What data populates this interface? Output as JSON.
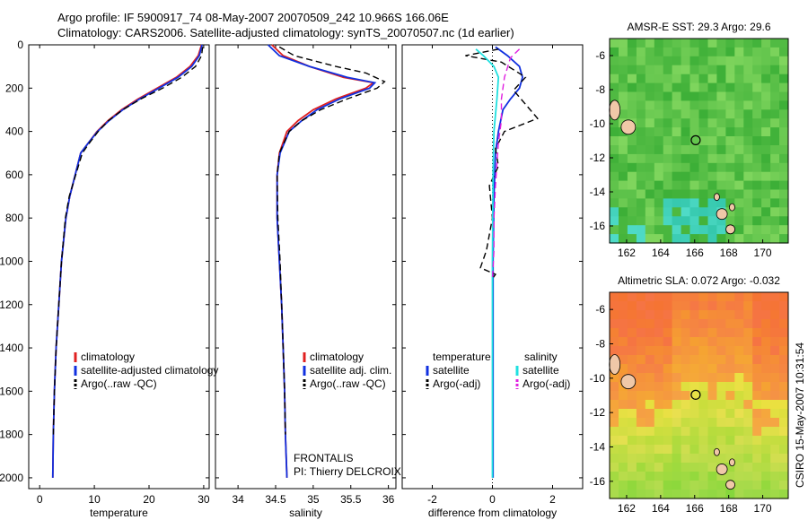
{
  "title_line1": "Argo profile: IF 5900917_74 08-May-2007 20070509_242 10.966S 166.06E",
  "title_line2": "Climatology: CARS2006. Satellite-adjusted climatology: synTS_20070507.nc (1d earlier)",
  "side_stamp": "CSIRO 15-May-2007 10:31:54",
  "frontalis": "FRONTALIS",
  "pi": "PI: Thierry DELCROIX",
  "colors": {
    "red": "#e02020",
    "blue": "#1030e0",
    "cyan": "#20e0e0",
    "magenta": "#e020e0",
    "black": "#000000"
  },
  "chart_data": [
    {
      "type": "line",
      "id": "temperature",
      "xlabel": "temperature",
      "xlim": [
        -2,
        31
      ],
      "ylim": [
        2050,
        0
      ],
      "xticks": [
        0,
        10,
        20,
        30
      ],
      "yticks": [
        0,
        200,
        400,
        600,
        800,
        1000,
        1200,
        1400,
        1600,
        1800,
        2000
      ],
      "legend": [
        "climatology",
        "satellite-adjusted climatology",
        "Argo(..raw -QC)"
      ],
      "series": [
        {
          "name": "climatology",
          "color": "red",
          "x": [
            29.6,
            29.0,
            27.5,
            25.0,
            21.5,
            18.0,
            15.0,
            12.5,
            10.5,
            9.0,
            7.5,
            6.5,
            5.5,
            4.8,
            4.0,
            3.5,
            3.0,
            2.7,
            2.5,
            2.4
          ],
          "y": [
            0,
            50,
            100,
            150,
            200,
            250,
            300,
            350,
            400,
            450,
            500,
            600,
            700,
            800,
            1000,
            1200,
            1400,
            1600,
            1800,
            2000
          ]
        },
        {
          "name": "satellite-adjusted climatology",
          "color": "blue",
          "x": [
            29.7,
            29.2,
            27.8,
            25.3,
            21.8,
            18.3,
            15.2,
            12.7,
            10.6,
            9.0,
            7.5,
            6.5,
            5.5,
            4.8,
            4.0,
            3.5,
            3.0,
            2.7,
            2.5,
            2.4
          ],
          "y": [
            0,
            50,
            100,
            150,
            200,
            250,
            300,
            350,
            400,
            450,
            500,
            600,
            700,
            800,
            1000,
            1200,
            1400,
            1600,
            1800,
            2000
          ]
        },
        {
          "name": "Argo(..raw -QC)",
          "color": "black",
          "dash": true,
          "x": [
            29.8,
            29.6,
            28.5,
            26.0,
            22.5,
            18.5,
            15.2,
            12.6,
            10.7,
            9.2,
            7.8,
            6.6,
            5.4,
            4.7,
            4.0,
            3.5,
            3.0,
            2.7,
            2.5
          ],
          "y": [
            10,
            50,
            100,
            150,
            200,
            250,
            300,
            350,
            400,
            450,
            500,
            600,
            700,
            800,
            1000,
            1200,
            1400,
            1600,
            1800
          ]
        }
      ]
    },
    {
      "type": "line",
      "id": "salinity",
      "xlabel": "salinity",
      "xlim": [
        33.7,
        36.1
      ],
      "ylim": [
        2050,
        0
      ],
      "xticks": [
        34,
        34.5,
        35,
        35.5,
        36
      ],
      "legend": [
        "climatology",
        "satellite adj. clim.",
        "Argo(..raw -QC)"
      ],
      "series": [
        {
          "name": "climatology",
          "color": "red",
          "x": [
            34.45,
            34.6,
            34.95,
            35.4,
            35.8,
            35.7,
            35.3,
            35.0,
            34.8,
            34.65,
            34.55,
            34.52,
            34.52,
            34.55,
            34.58,
            34.6,
            34.62,
            34.63,
            34.65
          ],
          "y": [
            0,
            50,
            100,
            150,
            175,
            200,
            250,
            300,
            350,
            400,
            500,
            600,
            800,
            1000,
            1200,
            1400,
            1600,
            1800,
            2000
          ]
        },
        {
          "name": "satellite adj. clim.",
          "color": "blue",
          "x": [
            34.4,
            34.55,
            34.95,
            35.45,
            35.82,
            35.75,
            35.35,
            35.05,
            34.85,
            34.68,
            34.56,
            34.52,
            34.52,
            34.55,
            34.58,
            34.6,
            34.62,
            34.63,
            34.65
          ],
          "y": [
            0,
            50,
            100,
            150,
            175,
            200,
            250,
            300,
            350,
            400,
            500,
            600,
            800,
            1000,
            1200,
            1400,
            1600,
            1800,
            2000
          ]
        },
        {
          "name": "Argo(..raw -QC)",
          "color": "black",
          "dash": true,
          "x": [
            34.55,
            34.75,
            35.3,
            35.7,
            35.95,
            35.85,
            35.45,
            35.1,
            34.85,
            34.68,
            34.55,
            34.52,
            34.53,
            34.56,
            34.58,
            34.6,
            34.62,
            34.63
          ],
          "y": [
            10,
            50,
            100,
            130,
            170,
            200,
            250,
            300,
            350,
            400,
            500,
            600,
            800,
            1000,
            1200,
            1400,
            1600,
            1800
          ]
        }
      ]
    },
    {
      "type": "line",
      "id": "difference",
      "xlabel": "difference from climatology",
      "xlim": [
        -3,
        3
      ],
      "ylim": [
        2050,
        0
      ],
      "xticks": [
        -2,
        0,
        2
      ],
      "legend_headers": [
        "temperature",
        "salinity"
      ],
      "legend": [
        "satellite",
        "Argo(-adj)",
        "satellite",
        "Argo(-adj)"
      ],
      "series": [
        {
          "name": "temperature satellite",
          "color": "blue",
          "x": [
            0.1,
            0.5,
            0.9,
            1.0,
            0.9,
            0.6,
            0.35,
            0.2,
            0.1,
            0.05,
            0.02,
            0.02,
            0.02
          ],
          "y": [
            10,
            50,
            100,
            150,
            200,
            250,
            300,
            400,
            500,
            700,
            1000,
            1500,
            2000
          ]
        },
        {
          "name": "temperature Argo(-adj)",
          "color": "black",
          "dash": true,
          "x": [
            0.2,
            -0.9,
            0.3,
            1.1,
            0.7,
            1.5,
            0.4,
            0.1,
            0.2,
            -0.1,
            0.0,
            -0.2,
            -0.4,
            0.1,
            0.0
          ],
          "y": [
            20,
            50,
            80,
            150,
            210,
            340,
            400,
            480,
            560,
            650,
            800,
            950,
            1030,
            1060,
            1080
          ]
        },
        {
          "name": "salinity satellite",
          "color": "cyan",
          "x": [
            -0.55,
            -0.3,
            0.05,
            0.2,
            0.15,
            0.05,
            0.02,
            0.0,
            0.0,
            0.0
          ],
          "y": [
            20,
            50,
            100,
            150,
            250,
            400,
            600,
            1000,
            1500,
            2000
          ]
        },
        {
          "name": "salinity Argo(-adj)",
          "color": "magenta",
          "dash": true,
          "x": [
            0.9,
            0.6,
            0.4,
            0.3,
            0.3,
            0.2,
            0.15,
            0.1,
            0.05,
            0.05,
            0.0
          ],
          "y": [
            20,
            60,
            150,
            250,
            350,
            450,
            550,
            650,
            800,
            950,
            1080
          ]
        }
      ]
    },
    {
      "type": "heatmap",
      "id": "sst_map",
      "title": "AMSR-E SST: 29.3 Argo: 29.6",
      "xlim": [
        161,
        171.5
      ],
      "ylim": [
        -17,
        -5
      ],
      "xticks": [
        162,
        164,
        166,
        168,
        170
      ],
      "yticks": [
        -6,
        -8,
        -10,
        -12,
        -14,
        -16
      ],
      "argo_position": [
        166.06,
        -10.966
      ],
      "colormap": "green"
    },
    {
      "type": "heatmap",
      "id": "sla_map",
      "title": "Altimetric SLA: 0.072 Argo: -0.032",
      "xlim": [
        161,
        171.5
      ],
      "ylim": [
        -17,
        -5
      ],
      "xticks": [
        162,
        164,
        166,
        168,
        170
      ],
      "yticks": [
        -6,
        -8,
        -10,
        -12,
        -14,
        -16
      ],
      "argo_position": [
        166.06,
        -10.966
      ],
      "colormap": "yellow-orange"
    }
  ]
}
